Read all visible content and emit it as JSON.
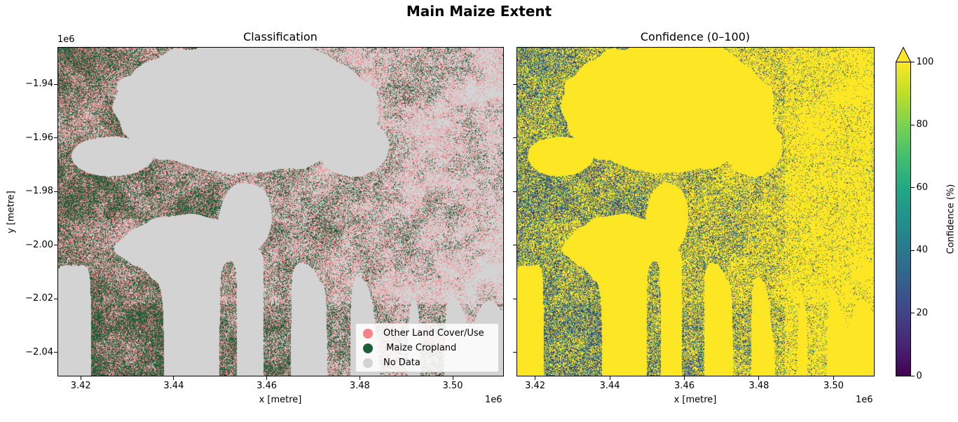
{
  "figure": {
    "title": "Main Maize Extent"
  },
  "chart_data": [
    {
      "type": "heatmap",
      "title": "Classification",
      "xlabel": "x [metre]",
      "ylabel": "y [metre]",
      "x_offset_label": "1e6",
      "y_offset_label": "1e6",
      "xlim": [
        3.415,
        3.511
      ],
      "ylim": [
        -2.049,
        -1.926
      ],
      "x_ticks": [
        3.42,
        3.44,
        3.46,
        3.48,
        3.5
      ],
      "x_tick_labels": [
        "3.42",
        "3.44",
        "3.46",
        "3.48",
        "3.50"
      ],
      "y_ticks": [
        -1.94,
        -1.96,
        -1.98,
        -2.0,
        -2.02,
        -2.04
      ],
      "y_tick_labels": [
        "−1.94",
        "−1.96",
        "−1.98",
        "−2.00",
        "−2.02",
        "−2.04"
      ],
      "legend": {
        "placement": "lower-right",
        "items": [
          {
            "label": "Other Land Cover/Use",
            "color": "#f78184"
          },
          {
            "label": " Maize Cropland",
            "color": "#1e5d3a"
          },
          {
            "label": "No Data",
            "color": "#d3d3d3"
          }
        ]
      }
    },
    {
      "type": "heatmap",
      "title": "Confidence (0–100)",
      "xlabel": "x [metre]",
      "x_offset_label": "1e6",
      "xlim": [
        3.415,
        3.511
      ],
      "ylim": [
        -2.049,
        -1.926
      ],
      "x_ticks": [
        3.42,
        3.44,
        3.46,
        3.48,
        3.5
      ],
      "x_tick_labels": [
        "3.42",
        "3.44",
        "3.46",
        "3.48",
        "3.50"
      ],
      "y_ticks": [
        -1.94,
        -1.96,
        -1.98,
        -2.0,
        -2.02,
        -2.04
      ],
      "colorbar": {
        "label": "Confidence (%)",
        "range": [
          0,
          100
        ],
        "ticks": [
          0,
          20,
          40,
          60,
          80,
          100
        ],
        "tick_labels": [
          "0",
          "20",
          "40",
          "60",
          "80",
          "100"
        ],
        "extend": "max",
        "colormap": "viridis"
      }
    }
  ]
}
